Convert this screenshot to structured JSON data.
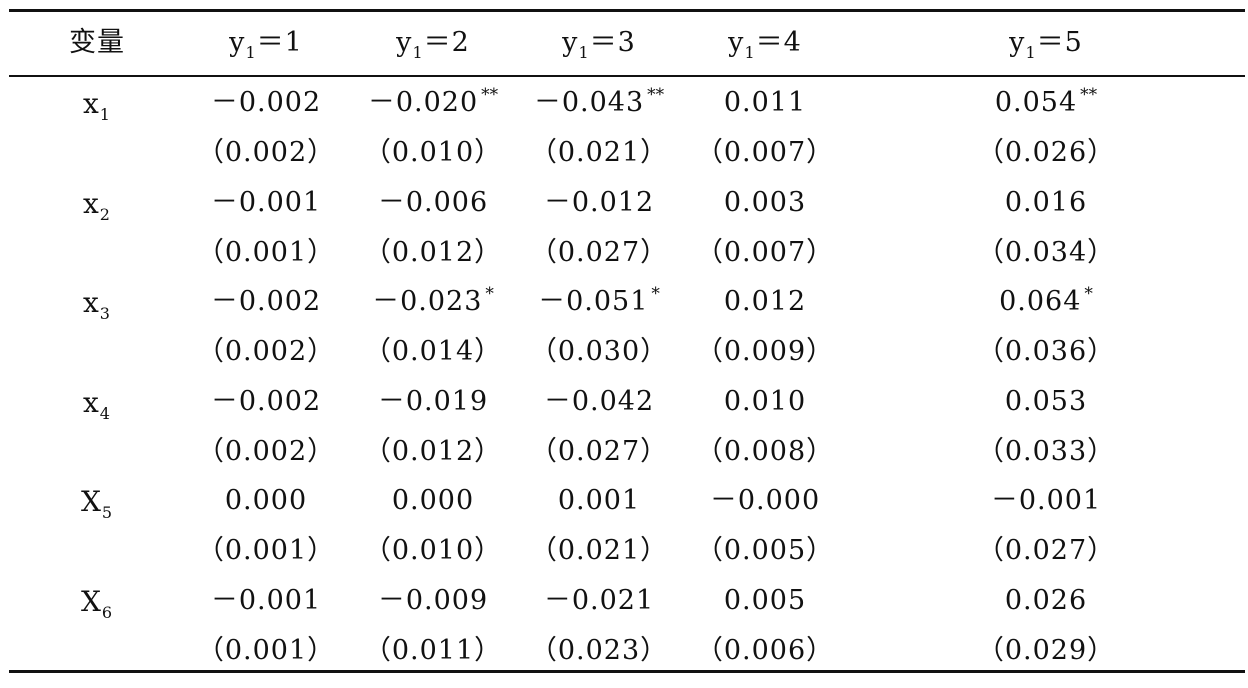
{
  "header": {
    "variable": "变量",
    "cols": [
      {
        "base": "y",
        "sub": "1",
        "rest": "＝1"
      },
      {
        "base": "y",
        "sub": "1",
        "rest": "＝2"
      },
      {
        "base": "y",
        "sub": "1",
        "rest": "＝3"
      },
      {
        "base": "y",
        "sub": "1",
        "rest": "＝4"
      },
      {
        "base": "y",
        "sub": "1",
        "rest": "＝5"
      }
    ]
  },
  "rows": [
    {
      "var": {
        "base": "x",
        "sub": "1"
      },
      "coef": [
        {
          "v": "－0.002",
          "s": ""
        },
        {
          "v": "－0.020",
          "s": "**"
        },
        {
          "v": "－0.043",
          "s": "**"
        },
        {
          "v": "0.011",
          "s": ""
        },
        {
          "v": "0.054",
          "s": "**"
        }
      ],
      "se": [
        "（0.002）",
        "（0.010）",
        "（0.021）",
        "（0.007）",
        "（0.026）"
      ]
    },
    {
      "var": {
        "base": "x",
        "sub": "2"
      },
      "coef": [
        {
          "v": "－0.001",
          "s": ""
        },
        {
          "v": "－0.006",
          "s": ""
        },
        {
          "v": "－0.012",
          "s": ""
        },
        {
          "v": "0.003",
          "s": ""
        },
        {
          "v": "0.016",
          "s": ""
        }
      ],
      "se": [
        "（0.001）",
        "（0.012）",
        "（0.027）",
        "（0.007）",
        "（0.034）"
      ]
    },
    {
      "var": {
        "base": "x",
        "sub": "3"
      },
      "coef": [
        {
          "v": "－0.002",
          "s": ""
        },
        {
          "v": "－0.023",
          "s": "*"
        },
        {
          "v": "－0.051",
          "s": "*"
        },
        {
          "v": "0.012",
          "s": ""
        },
        {
          "v": "0.064",
          "s": "*"
        }
      ],
      "se": [
        "（0.002）",
        "（0.014）",
        "（0.030）",
        "（0.009）",
        "（0.036）"
      ]
    },
    {
      "var": {
        "base": "x",
        "sub": "4"
      },
      "coef": [
        {
          "v": "－0.002",
          "s": ""
        },
        {
          "v": "－0.019",
          "s": ""
        },
        {
          "v": "－0.042",
          "s": ""
        },
        {
          "v": "0.010",
          "s": ""
        },
        {
          "v": "0.053",
          "s": ""
        }
      ],
      "se": [
        "（0.002）",
        "（0.012）",
        "（0.027）",
        "（0.008）",
        "（0.033）"
      ]
    },
    {
      "var": {
        "base": "X",
        "sub": "5"
      },
      "coef": [
        {
          "v": "0.000",
          "s": ""
        },
        {
          "v": "0.000",
          "s": ""
        },
        {
          "v": "0.001",
          "s": ""
        },
        {
          "v": "－0.000",
          "s": ""
        },
        {
          "v": "－0.001",
          "s": ""
        }
      ],
      "se": [
        "（0.001）",
        "（0.010）",
        "（0.021）",
        "（0.005）",
        "（0.027）"
      ]
    },
    {
      "var": {
        "base": "X",
        "sub": "6"
      },
      "coef": [
        {
          "v": "－0.001",
          "s": ""
        },
        {
          "v": "－0.009",
          "s": ""
        },
        {
          "v": "－0.021",
          "s": ""
        },
        {
          "v": "0.005",
          "s": ""
        },
        {
          "v": "0.026",
          "s": ""
        }
      ],
      "se": [
        "（0.001）",
        "（0.011）",
        "（0.023）",
        "（0.006）",
        "（0.029）"
      ]
    }
  ]
}
